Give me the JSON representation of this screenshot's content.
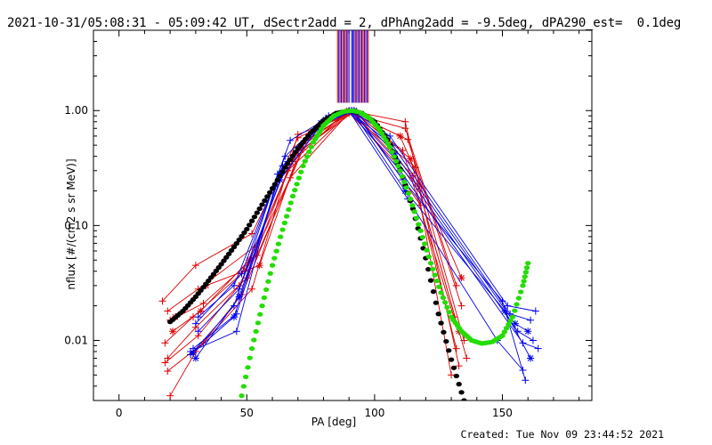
{
  "header": {
    "title": "2021-10-31/05:08:31 - 05:09:42 UT, dSectr2add = 2, dPhAng2add = -9.5deg, dPA290_est=  0.1deg"
  },
  "footer": {
    "created": "Created: Tue Nov 09 23:44:52 2021"
  },
  "chart_data": {
    "type": "line",
    "title": "2021-10-31/05:08:31 - 05:09:42 UT, dSectr2add = 2, dPhAng2add = -9.5deg, dPA290_est=  0.1deg",
    "xlabel": "PA [deg]",
    "ylabel": "nflux [#/(cm2 s sr MeV)]",
    "xlim": [
      -10,
      185
    ],
    "ylim": [
      0.003,
      5
    ],
    "yscale": "log",
    "xticks": [
      0,
      50,
      100,
      150
    ],
    "yticks": [
      {
        "v": 1.0,
        "label": "1.00"
      },
      {
        "v": 0.1,
        "label": "0.10"
      },
      {
        "v": 0.01,
        "label": "0.01"
      }
    ],
    "grid": false,
    "colors": {
      "red": "#dd0000",
      "blue": "#0000ee",
      "black": "#000000",
      "green": "#22dd00"
    },
    "vertical_lines": {
      "red": [
        85.5,
        86.5,
        87.5,
        88.5,
        89.5,
        92.5,
        93.5,
        94.5,
        95.5,
        96.5,
        97.5
      ],
      "blue": [
        86,
        87,
        88,
        89,
        90,
        91,
        91.5,
        92,
        93,
        94,
        95,
        96,
        97
      ]
    },
    "series": [
      {
        "color": "red",
        "marker": "+",
        "x": [
          17,
          30,
          52,
          70,
          90,
          112,
          132
        ],
        "y": [
          0.022,
          0.045,
          0.085,
          0.58,
          0.95,
          0.7,
          0.03
        ]
      },
      {
        "color": "red",
        "marker": "+",
        "x": [
          19,
          31,
          53,
          71,
          90,
          113,
          134
        ],
        "y": [
          0.018,
          0.028,
          0.065,
          0.5,
          0.97,
          0.56,
          0.02
        ]
      },
      {
        "color": "red",
        "marker": "+",
        "x": [
          20,
          33,
          54,
          72,
          91,
          111,
          131
        ],
        "y": [
          0.015,
          0.021,
          0.055,
          0.46,
          1.0,
          0.45,
          0.016
        ]
      },
      {
        "color": "red",
        "marker": "*",
        "x": [
          21,
          32,
          51,
          69,
          92,
          114,
          133
        ],
        "y": [
          0.012,
          0.018,
          0.05,
          0.42,
          0.98,
          0.38,
          0.012
        ]
      },
      {
        "color": "red",
        "marker": "+",
        "x": [
          18,
          29,
          49,
          68,
          89,
          116,
          135
        ],
        "y": [
          0.0095,
          0.016,
          0.04,
          0.36,
          0.99,
          0.32,
          0.01
        ]
      },
      {
        "color": "red",
        "marker": "+",
        "x": [
          19,
          30,
          50,
          66,
          91,
          115,
          132
        ],
        "y": [
          0.007,
          0.013,
          0.035,
          0.3,
          1.0,
          0.27,
          0.0085
        ]
      },
      {
        "color": "red",
        "marker": "+",
        "x": [
          18,
          31,
          47,
          67,
          90,
          117,
          136
        ],
        "y": [
          0.0064,
          0.011,
          0.03,
          0.26,
          0.96,
          0.22,
          0.007
        ]
      },
      {
        "color": "red",
        "marker": "+",
        "x": [
          19,
          33,
          52,
          70,
          93,
          112,
          133
        ],
        "y": [
          0.0054,
          0.0095,
          0.028,
          0.62,
          0.97,
          0.8,
          0.006
        ]
      },
      {
        "color": "red",
        "marker": "+",
        "x": [
          20,
          30,
          48,
          73,
          92,
          118,
          130
        ],
        "y": [
          0.0033,
          0.008,
          0.025,
          0.55,
          1.0,
          0.15,
          0.005
        ]
      },
      {
        "color": "red",
        "marker": "*",
        "x": [
          22,
          34,
          55,
          71,
          90,
          110,
          134
        ],
        "y": [
          0.016,
          0.03,
          0.045,
          0.48,
          0.98,
          0.6,
          0.035
        ]
      },
      {
        "color": "blue",
        "marker": "+",
        "x": [
          28,
          45,
          62,
          80,
          91,
          106,
          152,
          163
        ],
        "y": [
          0.0075,
          0.02,
          0.28,
          0.8,
          1.0,
          0.6,
          0.02,
          0.018
        ]
      },
      {
        "color": "blue",
        "marker": "+",
        "x": [
          29,
          46,
          64,
          81,
          90,
          107,
          153,
          161
        ],
        "y": [
          0.0085,
          0.017,
          0.33,
          0.85,
          0.99,
          0.5,
          0.017,
          0.015
        ]
      },
      {
        "color": "blue",
        "marker": "*",
        "x": [
          30,
          47,
          63,
          79,
          92,
          108,
          155,
          160
        ],
        "y": [
          0.007,
          0.024,
          0.25,
          0.75,
          1.0,
          0.42,
          0.014,
          0.012
        ]
      },
      {
        "color": "blue",
        "marker": "+",
        "x": [
          31,
          45,
          65,
          82,
          91,
          109,
          156,
          162
        ],
        "y": [
          0.016,
          0.03,
          0.4,
          0.9,
          0.97,
          0.36,
          0.012,
          0.01
        ]
      },
      {
        "color": "blue",
        "marker": "+",
        "x": [
          28,
          46,
          61,
          78,
          90,
          110,
          158,
          164
        ],
        "y": [
          0.008,
          0.012,
          0.22,
          0.7,
          1.0,
          0.3,
          0.0095,
          0.0085
        ]
      },
      {
        "color": "blue",
        "marker": "+",
        "x": [
          30,
          48,
          67,
          80,
          92,
          111,
          150,
          159
        ],
        "y": [
          0.014,
          0.038,
          0.55,
          0.82,
          0.98,
          0.25,
          0.022,
          0.0045
        ]
      },
      {
        "color": "blue",
        "marker": "*",
        "x": [
          29,
          45,
          63,
          79,
          91,
          112,
          151,
          161
        ],
        "y": [
          0.0078,
          0.016,
          0.28,
          0.78,
          1.0,
          0.2,
          0.018,
          0.007
        ]
      },
      {
        "color": "blue",
        "marker": "+",
        "x": [
          31,
          47,
          66,
          81,
          90,
          113,
          148,
          158
        ],
        "y": [
          0.012,
          0.028,
          0.36,
          0.86,
          0.99,
          0.17,
          0.01,
          0.0055
        ]
      }
    ],
    "reference_curves": [
      {
        "color": "black",
        "x": [
          20,
          25,
          30,
          35,
          40,
          45,
          50,
          55,
          60,
          65,
          70,
          75,
          80,
          85,
          90,
          95,
          100,
          105,
          110,
          115,
          120,
          125,
          130,
          135
        ],
        "y": [
          0.0145,
          0.018,
          0.024,
          0.033,
          0.046,
          0.065,
          0.093,
          0.14,
          0.21,
          0.32,
          0.47,
          0.64,
          0.82,
          0.95,
          1.0,
          0.95,
          0.8,
          0.56,
          0.31,
          0.14,
          0.052,
          0.017,
          0.0068,
          0.003
        ]
      },
      {
        "color": "green",
        "x": [
          48,
          52,
          56,
          60,
          64,
          68,
          72,
          76,
          80,
          84,
          88,
          91,
          94,
          98,
          102,
          106,
          110,
          114,
          118,
          122,
          126,
          130,
          134,
          138,
          142,
          146,
          150,
          154,
          158,
          160
        ],
        "y": [
          0.0033,
          0.0085,
          0.02,
          0.045,
          0.092,
          0.18,
          0.33,
          0.53,
          0.74,
          0.9,
          0.98,
          1.0,
          0.97,
          0.86,
          0.68,
          0.48,
          0.3,
          0.17,
          0.09,
          0.047,
          0.026,
          0.016,
          0.012,
          0.01,
          0.0094,
          0.0097,
          0.011,
          0.016,
          0.03,
          0.047
        ]
      }
    ]
  }
}
